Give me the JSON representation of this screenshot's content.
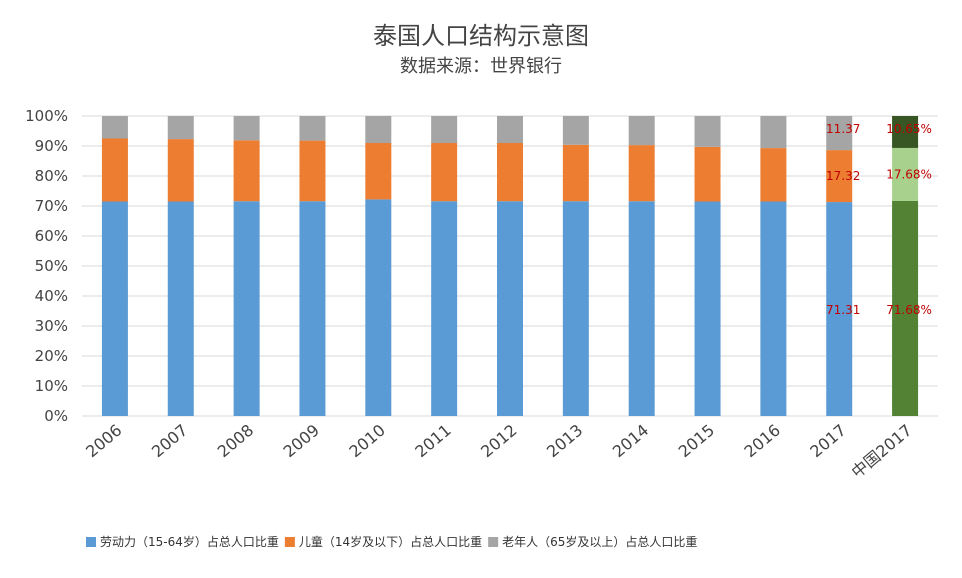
{
  "chart_data": {
    "type": "bar",
    "stacked": true,
    "percent": true,
    "title": "泰国人口结构示意图",
    "subtitle": "数据来源：世界银行",
    "categories": [
      "2006",
      "2007",
      "2008",
      "2009",
      "2010",
      "2011",
      "2012",
      "2013",
      "2014",
      "2015",
      "2016",
      "2017",
      "中国2017"
    ],
    "ylim": [
      0,
      100
    ],
    "yticks": [
      "0%",
      "10%",
      "20%",
      "30%",
      "40%",
      "50%",
      "60%",
      "70%",
      "80%",
      "90%",
      "100%"
    ],
    "grid": true,
    "legend_position": "bottom",
    "series": [
      {
        "name": "劳动力（15-64岁）占总人口比重",
        "values": [
          71.5,
          71.5,
          71.6,
          71.6,
          72.2,
          71.6,
          71.6,
          71.6,
          71.6,
          71.5,
          71.5,
          71.31,
          71.68
        ],
        "color": "#5b9bd5",
        "highlight_color": "#548235"
      },
      {
        "name": "儿童（14岁及以下）占总人口比重",
        "values": [
          21.0,
          20.8,
          20.3,
          20.2,
          18.8,
          19.4,
          19.4,
          18.8,
          18.7,
          18.2,
          17.8,
          17.32,
          17.68
        ],
        "color": "#ed7d31",
        "highlight_color": "#a9d18e"
      },
      {
        "name": "老年人（65岁及以上）占总人口比重",
        "values": [
          7.5,
          7.7,
          8.1,
          8.2,
          9.0,
          9.0,
          9.0,
          9.6,
          9.7,
          10.3,
          10.7,
          11.37,
          10.65
        ],
        "color": "#a5a5a5",
        "highlight_color": "#375623"
      }
    ],
    "data_labels": [
      {
        "category_index": 11,
        "series_index": 0,
        "text": "71.31"
      },
      {
        "category_index": 11,
        "series_index": 1,
        "text": "17.32"
      },
      {
        "category_index": 11,
        "series_index": 2,
        "text": "11.37"
      },
      {
        "category_index": 12,
        "series_index": 0,
        "text": "71.68%"
      },
      {
        "category_index": 12,
        "series_index": 1,
        "text": "17.68%"
      },
      {
        "category_index": 12,
        "series_index": 2,
        "text": "10.65%"
      }
    ],
    "highlight_category_index": 12
  }
}
